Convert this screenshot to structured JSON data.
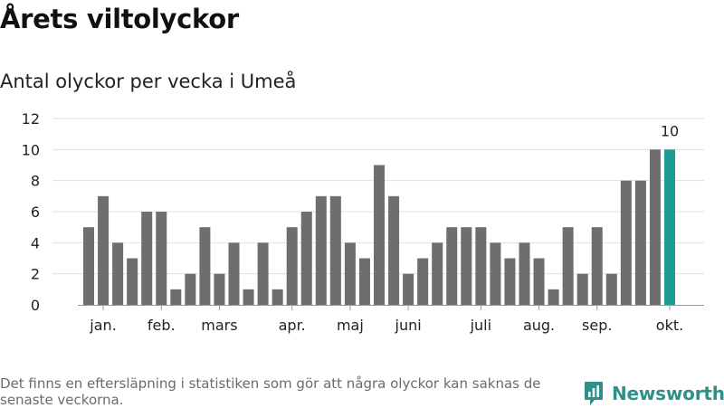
{
  "title": "Årets viltolyckor",
  "subtitle": "Antal olyckor per vecka i Umeå",
  "footnote": "Det finns en eftersläpning i statistiken som gör att några olyckor kan saknas de senaste veckorna.",
  "brand": {
    "name": "Newsworthy",
    "color": "#2f8f8a",
    "icon": "newsworthy-bars-icon"
  },
  "chart_data": {
    "type": "bar",
    "values": [
      5,
      7,
      4,
      3,
      6,
      6,
      1,
      2,
      5,
      2,
      4,
      1,
      4,
      1,
      5,
      6,
      7,
      7,
      4,
      3,
      9,
      7,
      2,
      3,
      4,
      5,
      5,
      5,
      4,
      3,
      4,
      3,
      1,
      5,
      2,
      5,
      2,
      8,
      8,
      10,
      10
    ],
    "highlight_index": 40,
    "highlight_label": "10",
    "month_labels": [
      {
        "label": "jan.",
        "position": 1.5
      },
      {
        "label": "feb.",
        "position": 5.5
      },
      {
        "label": "mars",
        "position": 9.5
      },
      {
        "label": "apr.",
        "position": 14.5
      },
      {
        "label": "maj",
        "position": 18.5
      },
      {
        "label": "juni",
        "position": 22.5
      },
      {
        "label": "juli",
        "position": 27.5
      },
      {
        "label": "aug.",
        "position": 31.5
      },
      {
        "label": "sep.",
        "position": 35.5
      },
      {
        "label": "okt.",
        "position": 40.5
      }
    ],
    "yticks": [
      0,
      2,
      4,
      6,
      8,
      10,
      12
    ],
    "ylim": [
      0,
      12
    ],
    "grid": true,
    "colors": {
      "bar": "#6e6d70",
      "highlight": "#1a9e91",
      "grid": "#e0e0e0"
    }
  }
}
